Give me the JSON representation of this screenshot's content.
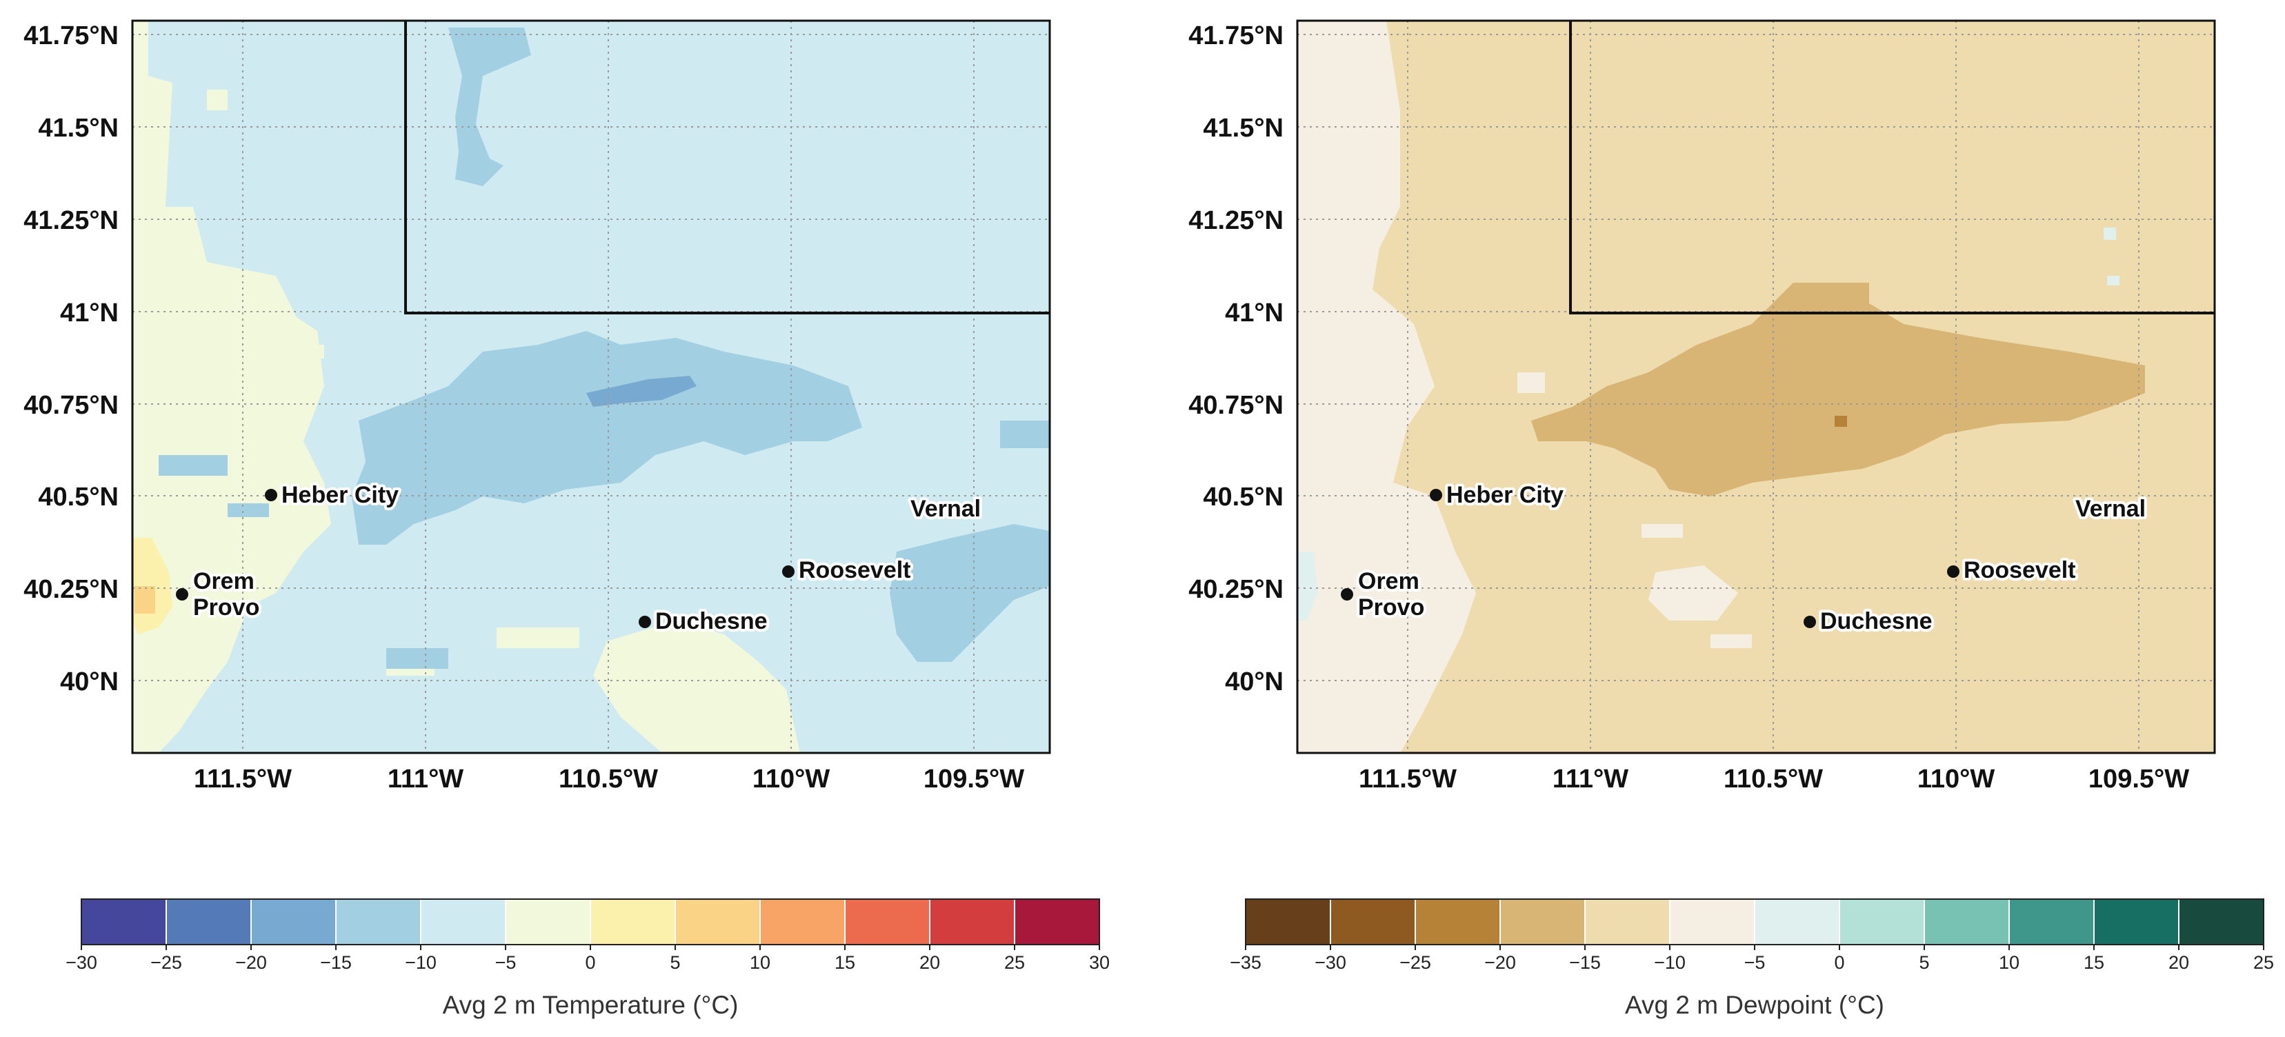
{
  "maps": [
    {
      "id": "temperature",
      "y_ticks": [
        "41.75°N",
        "41.5°N",
        "41.25°N",
        "41°N",
        "40.75°N",
        "40.5°N",
        "40.25°N",
        "40°N"
      ],
      "x_ticks": [
        "111.5°W",
        "111°W",
        "110.5°W",
        "110°W",
        "109.5°W"
      ],
      "cities": [
        "Heber City",
        "Orem",
        "Provo",
        "Duchesne",
        "Roosevelt",
        "Vernal"
      ],
      "colorbar": {
        "label": "Avg 2 m Temperature (°C)",
        "ticks": [
          "−30",
          "−25",
          "−20",
          "−15",
          "−10",
          "−5",
          "0",
          "5",
          "10",
          "15",
          "20",
          "25",
          "30"
        ],
        "colors": [
          "#45479d",
          "#547ab8",
          "#78a9d0",
          "#a3cfe3",
          "#d0eaf1",
          "#f1f8dc",
          "#fbf0ac",
          "#fad387",
          "#f7a466",
          "#ec6b4e",
          "#d43d3d",
          "#a7183b"
        ]
      },
      "field": {
        "background": "#d0eaf1",
        "classes": {
          "cold": "#a3cfe3",
          "colder": "#78a9d0",
          "mild": "#f1f8dc",
          "warm": "#fbf0ac"
        }
      }
    },
    {
      "id": "dewpoint",
      "y_ticks": [
        "41.75°N",
        "41.5°N",
        "41.25°N",
        "41°N",
        "40.75°N",
        "40.5°N",
        "40.25°N",
        "40°N"
      ],
      "x_ticks": [
        "111.5°W",
        "111°W",
        "110.5°W",
        "110°W",
        "109.5°W"
      ],
      "cities": [
        "Heber City",
        "Orem",
        "Provo",
        "Duchesne",
        "Roosevelt",
        "Vernal"
      ],
      "colorbar": {
        "label": "Avg 2 m Dewpoint (°C)",
        "ticks": [
          "−35",
          "−30",
          "−25",
          "−20",
          "−15",
          "−10",
          "−5",
          "0",
          "5",
          "10",
          "15",
          "20",
          "25"
        ],
        "colors": [
          "#67401b",
          "#8f5a22",
          "#b58238",
          "#d8b574",
          "#eedcae",
          "#f4efe2",
          "#dff0ee",
          "#b3e1d8",
          "#78c2b4",
          "#3f978c",
          "#176f64",
          "#184a3e"
        ]
      },
      "field": {
        "background": "#eedcae",
        "classes": {
          "dry": "#d8b574",
          "drier": "#b58238",
          "moist": "#f4efe2",
          "wet": "#dff0ee"
        }
      }
    }
  ]
}
